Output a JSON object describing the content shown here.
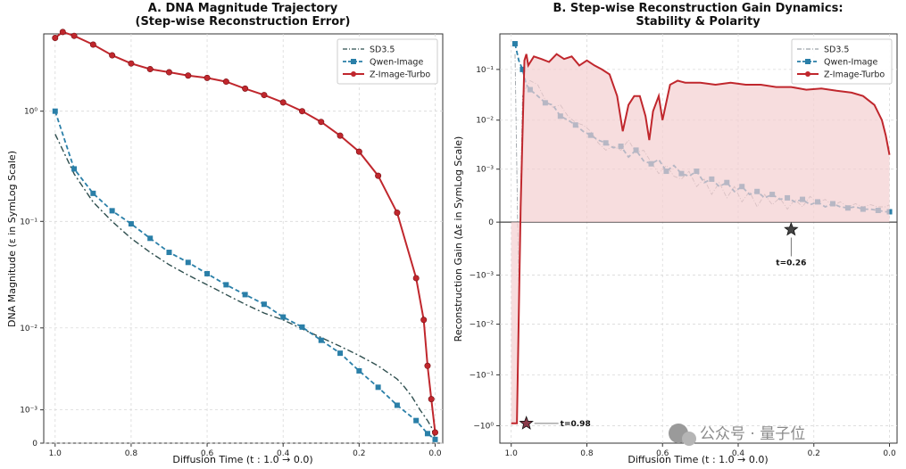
{
  "chart_data": [
    {
      "type": "line",
      "title": "A. DNA Magnitude Trajectory",
      "subtitle": "(Step-wise Reconstruction Error)",
      "xlabel": "Diffusion Time (t : 1.0 → 0.0)",
      "ylabel": "DNA Magnitude (ε in SymLog Scale)",
      "x_ticks": [
        "1.0",
        "0.8",
        "0.6",
        "0.4",
        "0.2",
        "0.0"
      ],
      "x_tick_values": [
        1.0,
        0.8,
        0.6,
        0.4,
        0.2,
        0.0
      ],
      "y_ticks": [
        "10⁰",
        "10⁻¹",
        "10⁻²",
        "10⁻³",
        "0"
      ],
      "y_tick_values": [
        1,
        0.1,
        0.01,
        0.001,
        0
      ],
      "xlim": [
        1.03,
        -0.02
      ],
      "yscale": "symlog",
      "linthresh": 0.001,
      "ylim": [
        0,
        5
      ],
      "grid": true,
      "legend": "top-right",
      "series": [
        {
          "name": "SD3.5",
          "color": "#2f4f4f",
          "style": "dashdot",
          "x": [
            1.0,
            0.95,
            0.9,
            0.85,
            0.8,
            0.75,
            0.7,
            0.65,
            0.6,
            0.55,
            0.5,
            0.45,
            0.4,
            0.35,
            0.3,
            0.25,
            0.2,
            0.15,
            0.1,
            0.08,
            0.06,
            0.04,
            0.02,
            0.01,
            0.0
          ],
          "values": [
            0.62,
            0.27,
            0.15,
            0.1,
            0.07,
            0.052,
            0.04,
            0.032,
            0.026,
            0.021,
            0.017,
            0.014,
            0.012,
            0.0098,
            0.008,
            0.0065,
            0.0052,
            0.004,
            0.0028,
            0.0022,
            0.0016,
            0.001,
            0.0006,
            0.0004,
            0.0001
          ]
        },
        {
          "name": "Qwen-Image",
          "color": "#2a7fa8",
          "style": "dashed-square",
          "x": [
            1.0,
            0.95,
            0.9,
            0.85,
            0.8,
            0.75,
            0.7,
            0.65,
            0.6,
            0.55,
            0.5,
            0.45,
            0.4,
            0.35,
            0.3,
            0.25,
            0.2,
            0.15,
            0.1,
            0.05,
            0.02,
            0.0
          ],
          "values": [
            1.0,
            0.3,
            0.18,
            0.125,
            0.095,
            0.07,
            0.052,
            0.042,
            0.033,
            0.026,
            0.021,
            0.017,
            0.0128,
            0.0102,
            0.0075,
            0.0055,
            0.0035,
            0.0022,
            0.0012,
            0.0006,
            0.00022,
            8e-05
          ]
        },
        {
          "name": "Z-Image-Turbo",
          "color": "#c0272d",
          "style": "solid-circle",
          "x": [
            1.0,
            0.98,
            0.95,
            0.9,
            0.85,
            0.8,
            0.75,
            0.7,
            0.65,
            0.6,
            0.55,
            0.5,
            0.45,
            0.4,
            0.35,
            0.3,
            0.25,
            0.2,
            0.15,
            0.1,
            0.05,
            0.03,
            0.02,
            0.01,
            0.0
          ],
          "values": [
            4.6,
            5.2,
            4.8,
            4.0,
            3.2,
            2.7,
            2.4,
            2.25,
            2.1,
            2.0,
            1.85,
            1.6,
            1.4,
            1.2,
            1.0,
            0.8,
            0.6,
            0.43,
            0.26,
            0.12,
            0.03,
            0.012,
            0.004,
            0.0015,
            0.00025
          ]
        }
      ]
    },
    {
      "type": "line",
      "title": "B. Step-wise Reconstruction Gain Dynamics:",
      "subtitle": "Stability & Polarity",
      "xlabel": "Diffusion Time (t : 1.0 → 0.0)",
      "ylabel": "Reconstruction Gain (Δε in SymLog Scale)",
      "x_ticks": [
        "1.0",
        "0.8",
        "0.6",
        "0.4",
        "0.2",
        "0.0"
      ],
      "x_tick_values": [
        1.0,
        0.8,
        0.6,
        0.4,
        0.2,
        0.0
      ],
      "y_ticks": [
        "10⁻¹",
        "10⁻²",
        "10⁻³",
        "0",
        "−10⁻³",
        "−10⁻²",
        "−10⁻¹",
        "−10⁰"
      ],
      "y_tick_values": [
        0.1,
        0.01,
        0.001,
        0,
        -0.001,
        -0.01,
        -0.1,
        -1
      ],
      "xlim": [
        1.03,
        -0.02
      ],
      "yscale": "symlog",
      "linthresh": 0.0001,
      "ylim": [
        -2.2,
        0.5
      ],
      "grid": true,
      "legend": "top-right",
      "annotations": [
        {
          "text": "t=0.98",
          "x": 0.96,
          "y": -0.9,
          "marker": "star"
        },
        {
          "text": "t=0.26",
          "x": 0.26,
          "y": -4e-05,
          "marker": "star"
        }
      ],
      "series": [
        {
          "name": "SD3.5",
          "color": "#9aa0a6",
          "style": "thin-dashdot",
          "x": [
            0.99,
            0.98,
            0.97,
            0.96,
            0.95,
            0.93,
            0.91,
            0.89,
            0.87,
            0.85,
            0.83,
            0.81,
            0.79,
            0.77,
            0.75,
            0.73,
            0.71,
            0.69,
            0.67,
            0.65,
            0.63,
            0.61,
            0.59,
            0.57,
            0.55,
            0.53,
            0.51,
            0.49,
            0.47,
            0.45,
            0.43,
            0.41,
            0.39,
            0.37,
            0.35,
            0.33,
            0.31,
            0.29,
            0.27,
            0.25,
            0.23,
            0.21,
            0.19,
            0.17,
            0.15,
            0.13,
            0.11,
            0.09,
            0.07,
            0.05,
            0.03,
            0.01,
            0.0
          ],
          "values": [
            0.2,
            -0.0025,
            0.03,
            0.045,
            0.06,
            0.05,
            0.025,
            0.018,
            0.02,
            0.012,
            0.009,
            0.008,
            0.006,
            0.0035,
            0.0025,
            0.003,
            0.0025,
            0.004,
            0.0022,
            0.0025,
            0.0014,
            0.0008,
            0.0012,
            0.0007,
            0.0006,
            0.0009,
            0.0004,
            0.0006,
            0.00025,
            0.0005,
            0.0002,
            0.0004,
            0.00015,
            0.0003,
            0.0001,
            0.00025,
            0.00012,
            0.0002,
            8e-05,
            0.00018,
            0.0001,
            0.00022,
            0.00014,
            0.00018,
            0.00011,
            0.00015,
            0.0001,
            0.00013,
            0.0001,
            0.00012,
            0.0001,
            0.0001,
            0.00012
          ]
        },
        {
          "name": "Qwen-Image",
          "color": "#2a7fa8",
          "style": "dashed-square",
          "x": [
            0.99,
            0.98,
            0.97,
            0.96,
            0.95,
            0.93,
            0.91,
            0.89,
            0.87,
            0.85,
            0.83,
            0.81,
            0.79,
            0.77,
            0.75,
            0.73,
            0.71,
            0.69,
            0.67,
            0.65,
            0.63,
            0.61,
            0.59,
            0.57,
            0.55,
            0.53,
            0.51,
            0.49,
            0.47,
            0.45,
            0.43,
            0.41,
            0.39,
            0.37,
            0.35,
            0.33,
            0.31,
            0.29,
            0.27,
            0.25,
            0.23,
            0.21,
            0.19,
            0.17,
            0.15,
            0.13,
            0.11,
            0.09,
            0.07,
            0.05,
            0.03,
            0.01,
            0.0
          ],
          "values": [
            0.32,
            0.15,
            0.1,
            0.05,
            0.04,
            0.03,
            0.022,
            0.02,
            0.012,
            0.01,
            0.008,
            0.006,
            0.005,
            0.004,
            0.0035,
            0.0028,
            0.003,
            0.0018,
            0.0025,
            0.0015,
            0.0013,
            0.0016,
            0.0009,
            0.0012,
            0.0008,
            0.0007,
            0.0009,
            0.0005,
            0.0006,
            0.0004,
            0.0005,
            0.0003,
            0.0004,
            0.00025,
            0.0003,
            0.0002,
            0.00025,
            0.00018,
            0.0002,
            0.00015,
            0.00018,
            0.00012,
            0.00015,
            0.0001,
            0.00013,
            0.0001,
            9e-05,
            0.0001,
            8e-05,
            8e-05,
            7e-05,
            6e-05,
            6e-05
          ]
        },
        {
          "name": "Z-Image-Turbo",
          "color": "#c0272d",
          "style": "solid-fill",
          "x": [
            1.0,
            0.985,
            0.975,
            0.965,
            0.96,
            0.955,
            0.94,
            0.92,
            0.9,
            0.88,
            0.86,
            0.84,
            0.82,
            0.8,
            0.78,
            0.76,
            0.74,
            0.72,
            0.705,
            0.69,
            0.675,
            0.66,
            0.645,
            0.635,
            0.625,
            0.61,
            0.6,
            0.58,
            0.56,
            0.54,
            0.5,
            0.46,
            0.42,
            0.38,
            0.34,
            0.3,
            0.26,
            0.22,
            0.18,
            0.14,
            0.1,
            0.07,
            0.04,
            0.02,
            0.01,
            0.0
          ],
          "values": [
            -0.9,
            -0.9,
            0.0001,
            0.15,
            0.2,
            0.12,
            0.18,
            0.16,
            0.14,
            0.2,
            0.16,
            0.18,
            0.12,
            0.15,
            0.12,
            0.1,
            0.08,
            0.03,
            0.006,
            0.02,
            0.03,
            0.03,
            0.012,
            0.004,
            0.015,
            0.03,
            0.01,
            0.05,
            0.06,
            0.055,
            0.055,
            0.05,
            0.055,
            0.05,
            0.05,
            0.045,
            0.045,
            0.04,
            0.042,
            0.038,
            0.035,
            0.03,
            0.02,
            0.01,
            0.005,
            0.002
          ]
        }
      ]
    }
  ],
  "watermark": {
    "text": "公众号 · 量子位"
  }
}
